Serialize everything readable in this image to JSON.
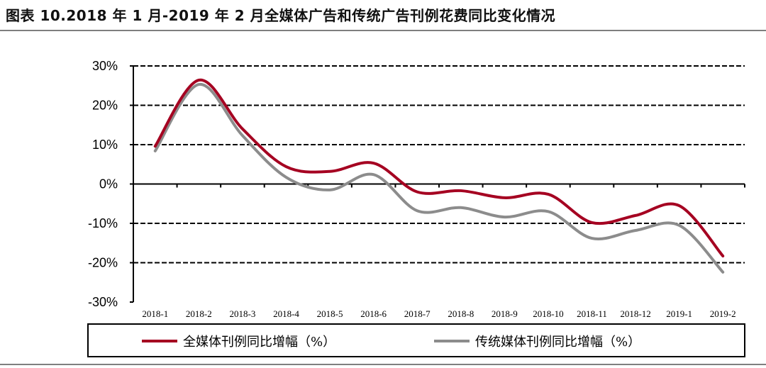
{
  "title": "图表 10.2018 年 1 月-2019 年 2 月全媒体广告和传统广告刊例花费同比变化情况",
  "chart_data": {
    "type": "line",
    "title": "",
    "xlabel": "",
    "ylabel": "",
    "categories": [
      "2018-1",
      "2018-2",
      "2018-3",
      "2018-4",
      "2018-5",
      "2018-6",
      "2018-7",
      "2018-8",
      "2018-9",
      "2018-10",
      "2018-11",
      "2018-12",
      "2019-1",
      "2019-2"
    ],
    "ylim": [
      -30,
      30
    ],
    "yticks": [
      30,
      20,
      10,
      0,
      -10,
      -20,
      -30
    ],
    "ytick_labels": [
      "30%",
      "20%",
      "10%",
      "0%",
      "-10%",
      "-20%",
      "-30%"
    ],
    "grid": "horizontal dashed",
    "legend_position": "bottom",
    "series": [
      {
        "name": "全媒体刊例同比增幅（%）",
        "color": "#a50021",
        "values": [
          9.6,
          26.4,
          14.0,
          4.4,
          3.2,
          5.3,
          -2.0,
          -1.7,
          -3.5,
          -2.6,
          -9.8,
          -8.0,
          -5.5,
          -18.3
        ]
      },
      {
        "name": "传统媒体刊例同比增幅（%）",
        "color": "#8c8c8c",
        "values": [
          8.4,
          25.3,
          12.3,
          1.7,
          -1.5,
          2.4,
          -6.8,
          -6.0,
          -8.4,
          -7.0,
          -13.8,
          -11.8,
          -10.5,
          -22.4
        ]
      }
    ]
  }
}
